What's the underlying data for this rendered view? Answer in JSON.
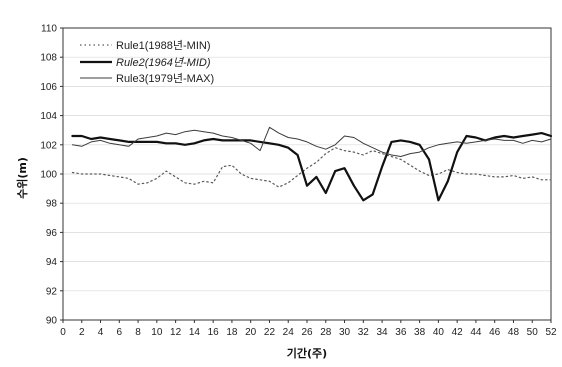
{
  "chart_data": {
    "type": "line",
    "title": "",
    "xlabel": "기간(주)",
    "ylabel": "수위(m)",
    "xlim": [
      0,
      52
    ],
    "ylim": [
      90,
      110
    ],
    "x_ticks": [
      "0",
      "2",
      "4",
      "6",
      "8",
      "10",
      "12",
      "14",
      "16",
      "18",
      "20",
      "22",
      "24",
      "26",
      "28",
      "30",
      "32",
      "34",
      "36",
      "38",
      "40",
      "42",
      "44",
      "46",
      "48",
      "50",
      "52"
    ],
    "y_ticks": [
      "90",
      "92",
      "94",
      "96",
      "98",
      "100",
      "102",
      "104",
      "106",
      "108",
      "110"
    ],
    "grid": "horizontal",
    "legend_position": "top-left",
    "x": [
      1,
      2,
      3,
      4,
      5,
      6,
      7,
      8,
      9,
      10,
      11,
      12,
      13,
      14,
      15,
      16,
      17,
      18,
      19,
      20,
      21,
      22,
      23,
      24,
      25,
      26,
      27,
      28,
      29,
      30,
      31,
      32,
      33,
      34,
      35,
      36,
      37,
      38,
      39,
      40,
      41,
      42,
      43,
      44,
      45,
      46,
      47,
      48,
      49,
      50,
      51,
      52
    ],
    "series": [
      {
        "name": "Rule1(1988년-MIN)",
        "style": "dotted",
        "values": [
          100.1,
          100.0,
          100.0,
          100.0,
          99.9,
          99.8,
          99.7,
          99.3,
          99.4,
          99.7,
          100.2,
          99.8,
          99.4,
          99.3,
          99.5,
          99.4,
          100.5,
          100.6,
          100.0,
          99.7,
          99.6,
          99.5,
          99.1,
          99.4,
          99.9,
          100.4,
          100.8,
          101.4,
          101.8,
          101.6,
          101.5,
          101.3,
          101.6,
          101.4,
          101.2,
          101.0,
          100.6,
          100.2,
          99.9,
          100.0,
          100.3,
          100.1,
          100.0,
          100.0,
          99.9,
          99.8,
          99.8,
          99.9,
          99.7,
          99.8,
          99.6,
          99.6
        ]
      },
      {
        "name": "Rule2(1964년-MID)",
        "style": "thick",
        "values": [
          102.6,
          102.6,
          102.4,
          102.5,
          102.4,
          102.3,
          102.2,
          102.2,
          102.2,
          102.2,
          102.1,
          102.1,
          102.0,
          102.1,
          102.3,
          102.4,
          102.3,
          102.3,
          102.3,
          102.3,
          102.2,
          102.1,
          102.0,
          101.8,
          101.3,
          99.2,
          99.8,
          98.7,
          100.2,
          100.4,
          99.2,
          98.2,
          98.6,
          100.5,
          102.2,
          102.3,
          102.2,
          102.0,
          101.0,
          98.2,
          99.5,
          101.5,
          102.6,
          102.5,
          102.3,
          102.5,
          102.6,
          102.5,
          102.6,
          102.7,
          102.8,
          102.6
        ]
      },
      {
        "name": "Rule3(1979년-MAX)",
        "style": "thin",
        "values": [
          102.0,
          101.9,
          102.2,
          102.3,
          102.1,
          102.0,
          101.9,
          102.4,
          102.5,
          102.6,
          102.8,
          102.7,
          102.9,
          103.0,
          102.9,
          102.8,
          102.6,
          102.5,
          102.3,
          102.1,
          101.6,
          103.2,
          102.8,
          102.5,
          102.4,
          102.2,
          101.9,
          101.7,
          102.0,
          102.6,
          102.5,
          102.1,
          101.8,
          101.5,
          101.3,
          101.2,
          101.4,
          101.5,
          101.8,
          102.0,
          102.1,
          102.2,
          102.1,
          102.2,
          102.3,
          102.4,
          102.3,
          102.3,
          102.1,
          102.3,
          102.2,
          102.4
        ]
      }
    ]
  },
  "colors": {
    "rule1": "#5a5a5a",
    "rule2": "#111111",
    "rule3": "#3c3c3c",
    "grid": "#d8d8d8",
    "axis": "#333333"
  }
}
